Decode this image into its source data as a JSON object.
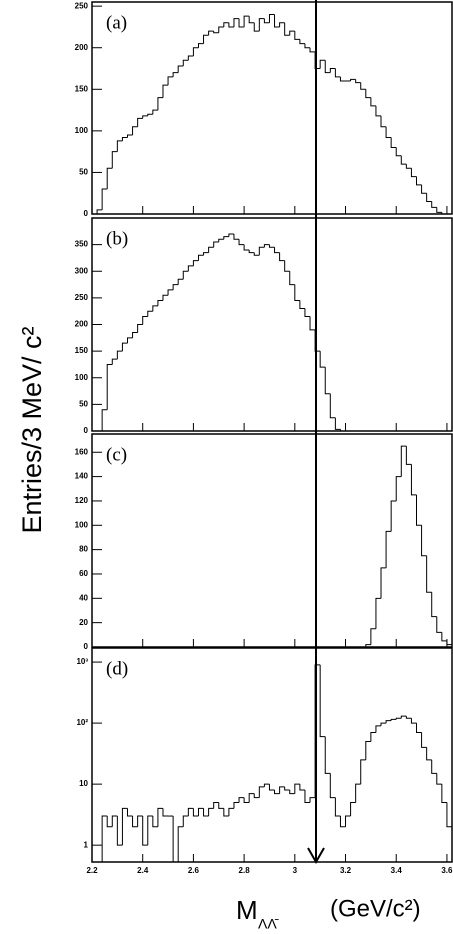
{
  "y_label": "Entries/3 MeV/ c²",
  "x_label": {
    "symbol": "M",
    "subscript": "ΛΛ̄",
    "unit": "(GeV/c²)"
  },
  "chart_data": [
    {
      "type": "histogram",
      "label": "(a)",
      "color": "#000000",
      "bins": [
        2.2,
        2.22,
        2.24,
        2.26,
        2.28,
        2.3,
        2.32,
        2.34,
        2.36,
        2.38,
        2.4,
        2.42,
        2.44,
        2.46,
        2.48,
        2.5,
        2.52,
        2.54,
        2.56,
        2.58,
        2.6,
        2.62,
        2.64,
        2.66,
        2.68,
        2.7,
        2.72,
        2.74,
        2.76,
        2.78,
        2.8,
        2.82,
        2.84,
        2.86,
        2.88,
        2.9,
        2.92,
        2.94,
        2.96,
        2.98,
        3.0,
        3.02,
        3.04,
        3.06,
        3.08,
        3.1,
        3.12,
        3.14,
        3.16,
        3.18,
        3.2,
        3.22,
        3.24,
        3.26,
        3.28,
        3.3,
        3.32,
        3.34,
        3.36,
        3.38,
        3.4,
        3.42,
        3.44,
        3.46,
        3.48,
        3.5,
        3.52,
        3.54,
        3.56,
        3.58,
        3.6,
        3.62
      ],
      "values": [
        0,
        5,
        30,
        55,
        75,
        88,
        92,
        95,
        105,
        115,
        118,
        120,
        125,
        140,
        155,
        165,
        170,
        178,
        185,
        190,
        200,
        205,
        215,
        220,
        218,
        225,
        230,
        225,
        235,
        225,
        238,
        230,
        220,
        235,
        230,
        240,
        225,
        230,
        215,
        220,
        210,
        205,
        200,
        195,
        175,
        185,
        170,
        175,
        165,
        160,
        160,
        162,
        158,
        150,
        140,
        130,
        118,
        105,
        92,
        80,
        70,
        60,
        55,
        45,
        35,
        25,
        15,
        8,
        2,
        0,
        0
      ],
      "xlim": [
        2.2,
        3.62
      ],
      "ylim": [
        0,
        255
      ],
      "yticks": [
        0,
        50,
        100,
        150,
        200,
        250
      ]
    },
    {
      "type": "histogram",
      "label": "(b)",
      "color": "#000000",
      "bins": [
        2.2,
        2.22,
        2.24,
        2.26,
        2.28,
        2.3,
        2.32,
        2.34,
        2.36,
        2.38,
        2.4,
        2.42,
        2.44,
        2.46,
        2.48,
        2.5,
        2.52,
        2.54,
        2.56,
        2.58,
        2.6,
        2.62,
        2.64,
        2.66,
        2.68,
        2.7,
        2.72,
        2.74,
        2.76,
        2.78,
        2.8,
        2.82,
        2.84,
        2.86,
        2.88,
        2.9,
        2.92,
        2.94,
        2.96,
        2.98,
        3.0,
        3.02,
        3.04,
        3.06,
        3.08,
        3.1,
        3.12,
        3.14,
        3.16,
        3.18,
        3.2,
        3.22,
        3.24,
        3.26,
        3.28,
        3.3,
        3.32,
        3.34,
        3.36,
        3.38,
        3.4,
        3.42,
        3.44,
        3.46,
        3.48,
        3.5,
        3.52,
        3.54,
        3.56,
        3.58,
        3.6,
        3.62
      ],
      "values": [
        0,
        0,
        40,
        125,
        135,
        150,
        165,
        175,
        185,
        200,
        215,
        225,
        235,
        245,
        255,
        265,
        275,
        285,
        300,
        310,
        320,
        330,
        335,
        345,
        355,
        360,
        365,
        370,
        360,
        350,
        340,
        335,
        330,
        345,
        350,
        345,
        335,
        320,
        300,
        275,
        245,
        230,
        215,
        190,
        150,
        120,
        70,
        25,
        3,
        0,
        0,
        0,
        0,
        0,
        0,
        0,
        0,
        0,
        0,
        0,
        0,
        0,
        0,
        0,
        0,
        0,
        0,
        0,
        0,
        0,
        0
      ],
      "xlim": [
        2.2,
        3.62
      ],
      "ylim": [
        0,
        400
      ],
      "yticks": [
        0,
        50,
        100,
        150,
        200,
        250,
        300,
        350
      ]
    },
    {
      "type": "histogram",
      "label": "(c)",
      "color": "#000000",
      "bins": [
        2.2,
        2.22,
        2.24,
        2.26,
        2.28,
        2.3,
        2.32,
        2.34,
        2.36,
        2.38,
        2.4,
        2.42,
        2.44,
        2.46,
        2.48,
        2.5,
        2.52,
        2.54,
        2.56,
        2.58,
        2.6,
        2.62,
        2.64,
        2.66,
        2.68,
        2.7,
        2.72,
        2.74,
        2.76,
        2.78,
        2.8,
        2.82,
        2.84,
        2.86,
        2.88,
        2.9,
        2.92,
        2.94,
        2.96,
        2.98,
        3.0,
        3.02,
        3.04,
        3.06,
        3.08,
        3.1,
        3.12,
        3.14,
        3.16,
        3.18,
        3.2,
        3.22,
        3.24,
        3.26,
        3.28,
        3.3,
        3.32,
        3.34,
        3.36,
        3.38,
        3.4,
        3.42,
        3.44,
        3.46,
        3.48,
        3.5,
        3.52,
        3.54,
        3.56,
        3.58,
        3.6,
        3.62
      ],
      "values": [
        0,
        0,
        0,
        0,
        0,
        0,
        0,
        0,
        0,
        0,
        0,
        0,
        0,
        0,
        0,
        0,
        0,
        0,
        0,
        0,
        0,
        0,
        0,
        0,
        0,
        0,
        0,
        0,
        0,
        0,
        0,
        0,
        0,
        0,
        0,
        0,
        0,
        0,
        0,
        0,
        0,
        0,
        0,
        0,
        0,
        0,
        0,
        0,
        0,
        0,
        0,
        0,
        0,
        0,
        2,
        15,
        40,
        65,
        95,
        120,
        140,
        165,
        150,
        125,
        100,
        75,
        45,
        25,
        12,
        5,
        2
      ],
      "xlim": [
        2.2,
        3.62
      ],
      "ylim": [
        0,
        175
      ],
      "yticks": [
        0,
        20,
        40,
        60,
        80,
        100,
        120,
        140,
        160
      ]
    },
    {
      "type": "histogram",
      "label": "(d)",
      "color": "#000000",
      "log_scale": true,
      "bins": [
        2.2,
        2.22,
        2.24,
        2.26,
        2.28,
        2.3,
        2.32,
        2.34,
        2.36,
        2.38,
        2.4,
        2.42,
        2.44,
        2.46,
        2.48,
        2.5,
        2.52,
        2.54,
        2.56,
        2.58,
        2.6,
        2.62,
        2.64,
        2.66,
        2.68,
        2.7,
        2.72,
        2.74,
        2.76,
        2.78,
        2.8,
        2.82,
        2.84,
        2.86,
        2.88,
        2.9,
        2.92,
        2.94,
        2.96,
        2.98,
        3.0,
        3.02,
        3.04,
        3.06,
        3.08,
        3.1,
        3.12,
        3.14,
        3.16,
        3.18,
        3.2,
        3.22,
        3.24,
        3.26,
        3.28,
        3.3,
        3.32,
        3.34,
        3.36,
        3.38,
        3.4,
        3.42,
        3.44,
        3.46,
        3.48,
        3.5,
        3.52,
        3.54,
        3.56,
        3.58,
        3.6,
        3.62
      ],
      "values": [
        0,
        0,
        3,
        2,
        3,
        1,
        4,
        3,
        2,
        3,
        1,
        3,
        2,
        4,
        3,
        3,
        0,
        2,
        3,
        4,
        3,
        4,
        3,
        4,
        5,
        4,
        3,
        4,
        5,
        6,
        5,
        7,
        6,
        9,
        10,
        8,
        7,
        9,
        8,
        7,
        10,
        8,
        5,
        6,
        900,
        60,
        15,
        6,
        3,
        2,
        3,
        5,
        10,
        25,
        50,
        70,
        90,
        100,
        110,
        115,
        120,
        130,
        120,
        100,
        70,
        40,
        25,
        15,
        10,
        5,
        2
      ],
      "xlim": [
        2.2,
        3.62
      ],
      "ylim": [
        0.53,
        1700
      ],
      "yticks": [
        1,
        10,
        {
          "value": 100,
          "label": "10²"
        },
        {
          "value": 1000,
          "label": "10³"
        }
      ],
      "xticks": [
        2.2,
        2.4,
        2.6,
        2.8,
        3,
        3.2,
        3.4,
        3.6
      ]
    }
  ]
}
